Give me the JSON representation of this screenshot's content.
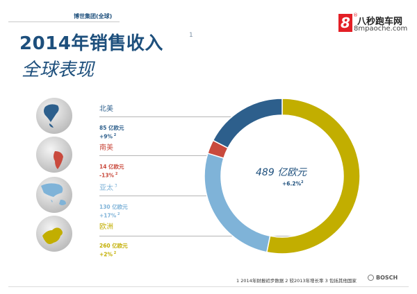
{
  "header": {
    "company": "博世集团(全球)",
    "title": "2014年销售收入",
    "title_note": "1",
    "subtitle": "全球表现"
  },
  "logo": {
    "mark": "8",
    "mark_sup": "®",
    "name": "八秒跑车网",
    "url": "8mpaoche.com"
  },
  "chart_data": {
    "type": "pie",
    "variant": "donut",
    "total": {
      "value": "489 亿欧元",
      "change": "+6.2%",
      "note": "2"
    },
    "unit": "亿欧元",
    "slices": [
      {
        "label": "北美",
        "value": 85,
        "value_text": "85 亿欧元",
        "change": "+9%",
        "note": "2",
        "note_on_label": "",
        "color": "#2d5f8c",
        "globe": "north-america"
      },
      {
        "label": "南美",
        "value": 14,
        "value_text": "14 亿欧元",
        "change": "-13%",
        "note": "2",
        "note_on_label": "",
        "color": "#c94a3d",
        "globe": "south-america"
      },
      {
        "label": "亚太",
        "value": 130,
        "value_text": "130 亿欧元",
        "change": "+17%",
        "note": "2",
        "note_on_label": "3",
        "color": "#7fb3d8",
        "globe": "asia-pacific"
      },
      {
        "label": "欧洲",
        "value": 260,
        "value_text": "260 亿欧元",
        "change": "+2%",
        "note": "2",
        "note_on_label": "",
        "color": "#c2ae00",
        "globe": "europe"
      }
    ]
  },
  "footer": {
    "footnote": "1  2014年财报初步数据  2  较2013年增长率  3  包括其他国家",
    "brand": "BOSCH"
  }
}
